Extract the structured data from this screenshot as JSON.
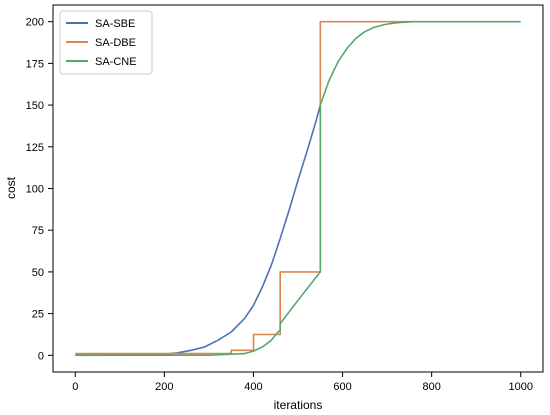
{
  "chart_data": {
    "type": "line",
    "xlabel": "iterations",
    "ylabel": "cost",
    "xlim": [
      -50,
      1050
    ],
    "ylim": [
      -10,
      210
    ],
    "xticks": [
      0,
      200,
      400,
      600,
      800,
      1000
    ],
    "yticks": [
      0,
      25,
      50,
      75,
      100,
      125,
      150,
      175,
      200
    ],
    "grid": false,
    "legend_position": "top-left",
    "series": [
      {
        "name": "SA-SBE",
        "color": "#4c72b0",
        "x": [
          0,
          100,
          200,
          230,
          260,
          290,
          320,
          350,
          380,
          400,
          420,
          440,
          460,
          480,
          500,
          520,
          540,
          550
        ],
        "y": [
          0.5,
          0.5,
          0.7,
          1.5,
          3,
          5,
          9,
          14,
          22,
          30,
          41,
          54,
          70,
          87,
          105,
          122,
          140,
          150
        ]
      },
      {
        "name": "SA-DBE",
        "color": "#dd8452",
        "x": [
          0,
          350,
          350,
          400,
          400,
          460,
          460,
          550,
          550,
          760
        ],
        "y": [
          1,
          1,
          3,
          3,
          12.5,
          12.5,
          50,
          50,
          200,
          200
        ]
      },
      {
        "name": "SA-CNE",
        "color": "#55a868",
        "x": [
          0,
          300,
          380,
          400,
          420,
          440,
          455,
          460,
          460,
          500,
          550,
          550,
          570,
          590,
          610,
          630,
          650,
          670,
          690,
          710,
          730,
          760,
          800,
          900,
          1000
        ],
        "y": [
          0,
          0.1,
          1,
          2.5,
          5,
          9,
          14,
          15,
          19,
          33,
          50,
          150,
          165,
          176,
          184,
          190,
          194,
          196.5,
          198,
          199,
          199.5,
          200,
          200,
          200,
          200
        ]
      }
    ]
  }
}
